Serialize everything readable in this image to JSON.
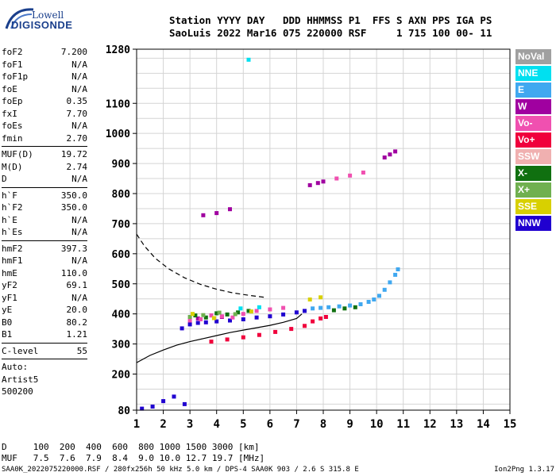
{
  "logo": {
    "line1": "Lowell",
    "line2": "DIGISONDE"
  },
  "header": {
    "line1": "Station YYYY DAY   DDD HHMMSS P1  FFS S AXN PPS IGA PS",
    "line2": "SaoLuis 2022 Mar16 075 220000 RSF     1 715 100 00- 11"
  },
  "params": {
    "group1": [
      {
        "k": "foF2",
        "v": "7.200"
      },
      {
        "k": "foF1",
        "v": "N/A"
      },
      {
        "k": "foF1p",
        "v": "N/A"
      },
      {
        "k": "foE",
        "v": "N/A"
      },
      {
        "k": "foEp",
        "v": "0.35"
      },
      {
        "k": "fxI",
        "v": "7.70"
      },
      {
        "k": "foEs",
        "v": "N/A"
      },
      {
        "k": "fmin",
        "v": "2.70"
      }
    ],
    "group2": [
      {
        "k": "MUF(D)",
        "v": "19.72"
      },
      {
        "k": "M(D)",
        "v": "2.74"
      },
      {
        "k": "D",
        "v": "N/A"
      }
    ],
    "group3": [
      {
        "k": "h`F",
        "v": "350.0"
      },
      {
        "k": "h`F2",
        "v": "350.0"
      },
      {
        "k": "h`E",
        "v": "N/A"
      },
      {
        "k": "h`Es",
        "v": "N/A"
      }
    ],
    "group4": [
      {
        "k": "hmF2",
        "v": "397.3"
      },
      {
        "k": "hmF1",
        "v": "N/A"
      },
      {
        "k": "hmE",
        "v": "110.0"
      },
      {
        "k": "yF2",
        "v": "69.1"
      },
      {
        "k": "yF1",
        "v": "N/A"
      },
      {
        "k": "yE",
        "v": "20.0"
      },
      {
        "k": "B0",
        "v": "80.2"
      },
      {
        "k": "B1",
        "v": "1.21"
      }
    ],
    "clevel": {
      "k": "C-level",
      "v": "55"
    },
    "auto": [
      "Auto:",
      "Artist5",
      "500200"
    ]
  },
  "legend": [
    {
      "label": "NoVal",
      "color": "#a0a0a0"
    },
    {
      "label": "NNE",
      "color": "#00e0f0"
    },
    {
      "label": "E",
      "color": "#40a8f0"
    },
    {
      "label": "W",
      "color": "#a000a0"
    },
    {
      "label": "Vo-",
      "color": "#f050b0"
    },
    {
      "label": "Vo+",
      "color": "#f0003c"
    },
    {
      "label": "SSW",
      "color": "#f0b0b0"
    },
    {
      "label": "X-",
      "color": "#107010"
    },
    {
      "label": "X+",
      "color": "#70b050"
    },
    {
      "label": "SSE",
      "color": "#d8d000"
    },
    {
      "label": "NNW",
      "color": "#2000d0"
    }
  ],
  "footer": {
    "line1": "D     100  200  400  600  800 1000 1500 3000 [km]",
    "line2": "MUF   7.5  7.6  7.9  8.4  9.0 10.0 12.7 19.7 [MHz]"
  },
  "footnote": {
    "left": "SAA0K_2022075220000.RSF / 280fx256h 50 kHz 5.0 km / DPS-4 SAA0K 903 / 2.6 S 315.8 E",
    "right": "Ion2Png 1.3.17"
  },
  "chart_data": {
    "type": "scatter",
    "title": "",
    "xlabel": "",
    "ylabel": "",
    "xlim": [
      1,
      15
    ],
    "ylim": [
      80,
      1280
    ],
    "x_ticks": [
      1,
      2,
      3,
      4,
      5,
      6,
      7,
      8,
      9,
      10,
      11,
      12,
      13,
      14,
      15
    ],
    "y_ticks": [
      80,
      200,
      300,
      400,
      500,
      600,
      700,
      800,
      900,
      1000,
      1100,
      1280
    ],
    "grid": true,
    "legend_position": "right",
    "series": [
      {
        "name": "E",
        "color": "#40a8f0",
        "x": [
          7.6,
          7.9,
          8.2,
          8.6,
          9.0,
          9.4,
          9.7,
          9.9,
          10.1,
          10.3,
          10.5,
          10.7,
          10.8
        ],
        "y": [
          418,
          420,
          422,
          425,
          428,
          432,
          440,
          448,
          460,
          480,
          505,
          530,
          548
        ]
      },
      {
        "name": "NNW",
        "color": "#2000d0",
        "x": [
          2.7,
          3.0,
          3.3,
          3.6,
          4.0,
          4.5,
          5.0,
          5.5,
          6.0,
          6.5,
          7.0,
          7.3,
          1.2,
          1.6,
          2.0,
          2.4,
          2.8
        ],
        "y": [
          352,
          365,
          370,
          372,
          375,
          378,
          382,
          388,
          392,
          398,
          405,
          410,
          85,
          92,
          110,
          125,
          100
        ]
      },
      {
        "name": "W",
        "color": "#a000a0",
        "x": [
          3.5,
          4.0,
          4.5,
          7.5,
          7.8,
          8.0,
          10.3,
          10.5,
          10.7,
          3.3,
          3.8,
          4.2
        ],
        "y": [
          728,
          735,
          748,
          828,
          835,
          840,
          920,
          930,
          940,
          385,
          395,
          390
        ]
      },
      {
        "name": "Vo+",
        "color": "#f0003c",
        "x": [
          3.8,
          4.4,
          5.0,
          5.6,
          6.2,
          6.8,
          7.3,
          7.6,
          7.9,
          8.1
        ],
        "y": [
          308,
          315,
          322,
          330,
          340,
          350,
          360,
          375,
          385,
          390
        ]
      },
      {
        "name": "Vo-",
        "color": "#f050b0",
        "x": [
          3.0,
          3.4,
          3.8,
          4.2,
          4.6,
          5.0,
          5.5,
          6.0,
          6.5,
          8.5,
          9.0,
          9.5
        ],
        "y": [
          378,
          382,
          395,
          392,
          388,
          400,
          410,
          415,
          420,
          850,
          860,
          870
        ]
      },
      {
        "name": "X-",
        "color": "#107010",
        "x": [
          3.2,
          3.6,
          4.0,
          4.4,
          4.8,
          5.2,
          8.4,
          8.8,
          9.2
        ],
        "y": [
          395,
          388,
          402,
          398,
          405,
          410,
          412,
          418,
          422
        ]
      },
      {
        "name": "X+",
        "color": "#70b050",
        "x": [
          3.0,
          3.5,
          4.1,
          4.7
        ],
        "y": [
          390,
          396,
          404,
          399
        ]
      },
      {
        "name": "SSE",
        "color": "#d8d000",
        "x": [
          3.1,
          3.9,
          5.3,
          7.5,
          7.9
        ],
        "y": [
          400,
          386,
          408,
          448,
          455
        ]
      },
      {
        "name": "NNE",
        "color": "#00e0f0",
        "x": [
          5.2,
          4.9,
          5.6
        ],
        "y": [
          1245,
          418,
          422
        ]
      }
    ],
    "curves": [
      {
        "style": "dashed",
        "x": [
          1.0,
          1.3,
          1.7,
          2.2,
          2.8,
          3.4,
          4.0,
          4.6,
          5.2,
          5.8
        ],
        "y": [
          665,
          625,
          585,
          550,
          520,
          498,
          482,
          470,
          462,
          455
        ]
      },
      {
        "style": "solid",
        "x": [
          1.0,
          1.5,
          2.0,
          2.5,
          3.0,
          3.5,
          4.0,
          4.5,
          5.0,
          5.5,
          6.0,
          6.5,
          7.0,
          7.2
        ],
        "y": [
          238,
          262,
          280,
          296,
          308,
          318,
          328,
          338,
          346,
          354,
          362,
          372,
          385,
          400
        ]
      }
    ]
  }
}
